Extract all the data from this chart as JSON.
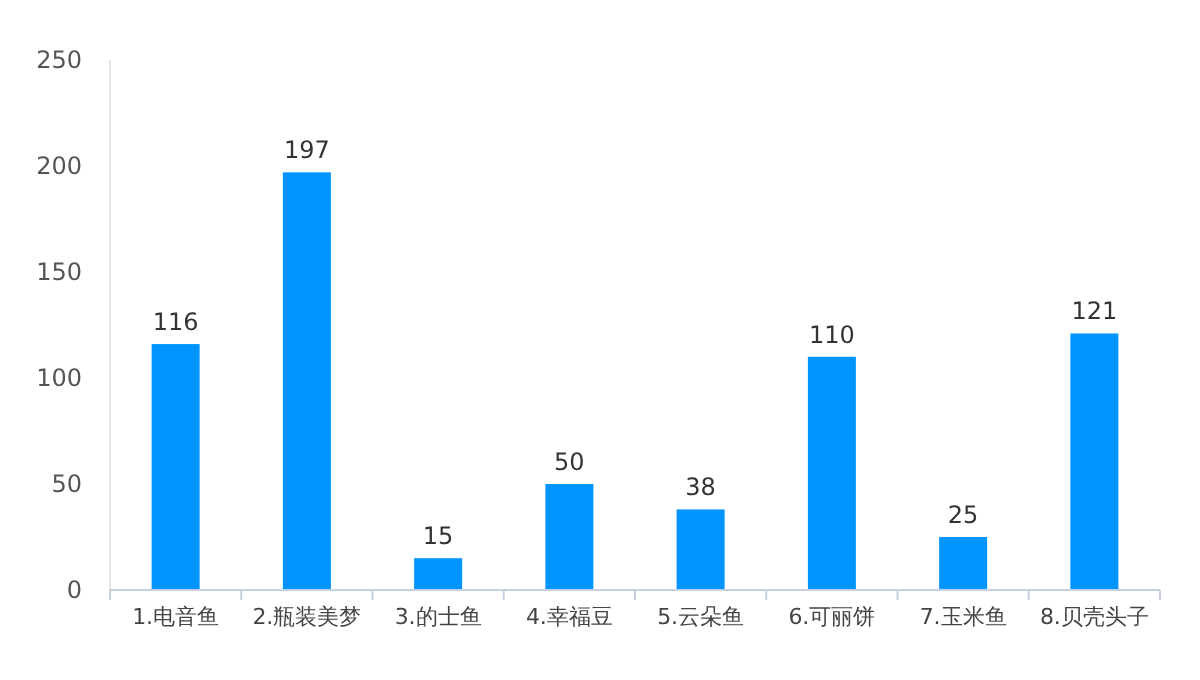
{
  "chart_data": {
    "type": "bar",
    "categories": [
      "1.电音鱼",
      "2.瓶装美梦",
      "3.的士鱼",
      "4.幸福豆",
      "5.云朵鱼",
      "6.可丽饼",
      "7.玉米鱼",
      "8.贝壳头子"
    ],
    "values": [
      116,
      197,
      15,
      50,
      38,
      110,
      25,
      121
    ],
    "color": "#0094ff",
    "ylim": [
      0,
      250
    ],
    "yticks": [
      0,
      50,
      100,
      150,
      200,
      250
    ],
    "grid": false,
    "data_labels": true
  }
}
